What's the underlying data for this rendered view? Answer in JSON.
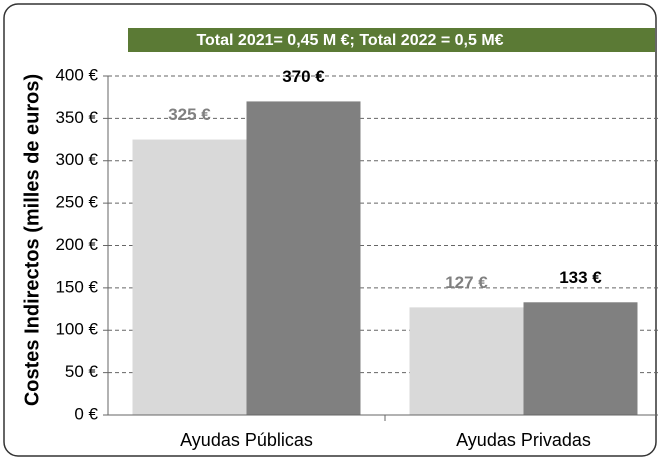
{
  "chart_data": {
    "type": "bar",
    "title": "Total 2021= 0,45 M €; Total 2022 = 0,5 M€",
    "y_label": "Costes Indirectos (milles de euros)",
    "categories": [
      "Ayudas Públicas",
      "Ayudas Privadas"
    ],
    "series": [
      {
        "color": "#d9d9d9",
        "label_color": "#808080",
        "values": [
          325,
          127
        ],
        "value_labels": [
          "325 €",
          "127 €"
        ]
      },
      {
        "color": "#808080",
        "label_color": "#000000",
        "values": [
          370,
          133
        ],
        "value_labels": [
          "370 €",
          "133 €"
        ]
      }
    ],
    "ylim": [
      0,
      400
    ],
    "yticks": [
      {
        "value": 0,
        "label": "0 €"
      },
      {
        "value": 50,
        "label": "50 €"
      },
      {
        "value": 100,
        "label": "100 €"
      },
      {
        "value": 150,
        "label": "150 €"
      },
      {
        "value": 200,
        "label": "200 €"
      },
      {
        "value": 250,
        "label": "250 €"
      },
      {
        "value": 300,
        "label": "300 €"
      },
      {
        "value": 350,
        "label": "350 €"
      },
      {
        "value": 400,
        "label": "400 €"
      }
    ],
    "grid": true
  }
}
